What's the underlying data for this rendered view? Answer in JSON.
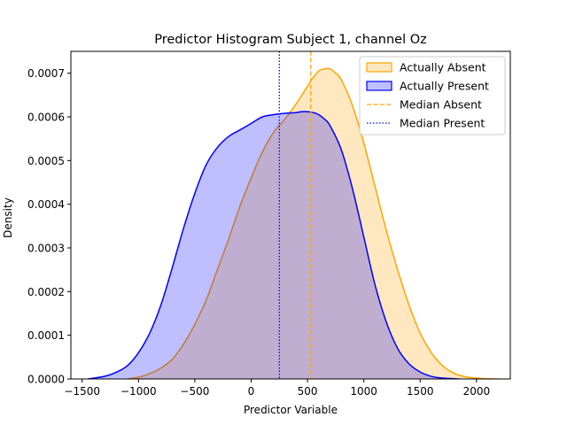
{
  "chart_data": {
    "type": "area",
    "title": "Predictor Histogram Subject 1, channel Oz",
    "xlabel": "Predictor Variable",
    "ylabel": "Density",
    "xlim": [
      -1600,
      2300
    ],
    "ylim": [
      0,
      0.00075
    ],
    "xticks": [
      -1500,
      -1000,
      -500,
      0,
      500,
      1000,
      1500,
      2000
    ],
    "xtick_labels": [
      "−1500",
      "−1000",
      "−500",
      "0",
      "500",
      "1000",
      "1500",
      "2000"
    ],
    "yticks": [
      0,
      0.0001,
      0.0002,
      0.0003,
      0.0004,
      0.0005,
      0.0006,
      0.0007
    ],
    "ytick_labels": [
      "0.0000",
      "0.0001",
      "0.0002",
      "0.0003",
      "0.0004",
      "0.0005",
      "0.0006",
      "0.0007"
    ],
    "grid": false,
    "legend_position": "top-right",
    "series": [
      {
        "name": "Actually Absent",
        "color": "#ffa500",
        "fill": "#ffe4b5",
        "x": [
          -1100,
          -1000,
          -900,
          -800,
          -700,
          -600,
          -500,
          -400,
          -300,
          -200,
          -100,
          0,
          100,
          200,
          300,
          400,
          500,
          550,
          600,
          650,
          700,
          750,
          800,
          900,
          1000,
          1100,
          1200,
          1300,
          1400,
          1500,
          1600,
          1700,
          1800,
          1900,
          2000,
          2100,
          2200
        ],
        "y": [
          0.0,
          4e-06,
          1.2e-05,
          2.5e-05,
          4.5e-05,
          8e-05,
          0.000125,
          0.00018,
          0.00025,
          0.00032,
          0.000395,
          0.00046,
          0.00052,
          0.000565,
          0.000595,
          0.00063,
          0.00067,
          0.00069,
          0.000705,
          0.00071,
          0.00071,
          0.0007,
          0.000685,
          0.000625,
          0.00054,
          0.00044,
          0.00034,
          0.00025,
          0.00017,
          0.000105,
          6e-05,
          3e-05,
          1.3e-05,
          5e-06,
          2e-06,
          5e-07,
          0.0
        ]
      },
      {
        "name": "Actually Present",
        "color": "#0000ff",
        "fill": "#bdbdff",
        "x": [
          -1450,
          -1300,
          -1200,
          -1100,
          -1000,
          -900,
          -800,
          -700,
          -600,
          -500,
          -400,
          -300,
          -200,
          -100,
          0,
          100,
          200,
          300,
          400,
          450,
          500,
          550,
          600,
          650,
          700,
          800,
          900,
          1000,
          1100,
          1200,
          1300,
          1400,
          1500,
          1600,
          1700,
          1850
        ],
        "y": [
          0.0,
          6e-06,
          1.5e-05,
          3e-05,
          6e-05,
          0.000105,
          0.00017,
          0.000255,
          0.000345,
          0.000425,
          0.00049,
          0.00053,
          0.000555,
          0.00057,
          0.000585,
          0.0006,
          0.000605,
          0.000608,
          0.00061,
          0.000612,
          0.000612,
          0.00061,
          0.000605,
          0.000595,
          0.00058,
          0.000525,
          0.000435,
          0.000325,
          0.000215,
          0.00013,
          7e-05,
          3.5e-05,
          1.6e-05,
          6e-06,
          2e-06,
          0.0
        ]
      }
    ],
    "median_lines": [
      {
        "name": "Median Absent",
        "x": 530,
        "color": "#ffa500",
        "style": "dashed"
      },
      {
        "name": "Median Present",
        "x": 250,
        "color": "#0000ff",
        "style": "dotted"
      }
    ]
  }
}
